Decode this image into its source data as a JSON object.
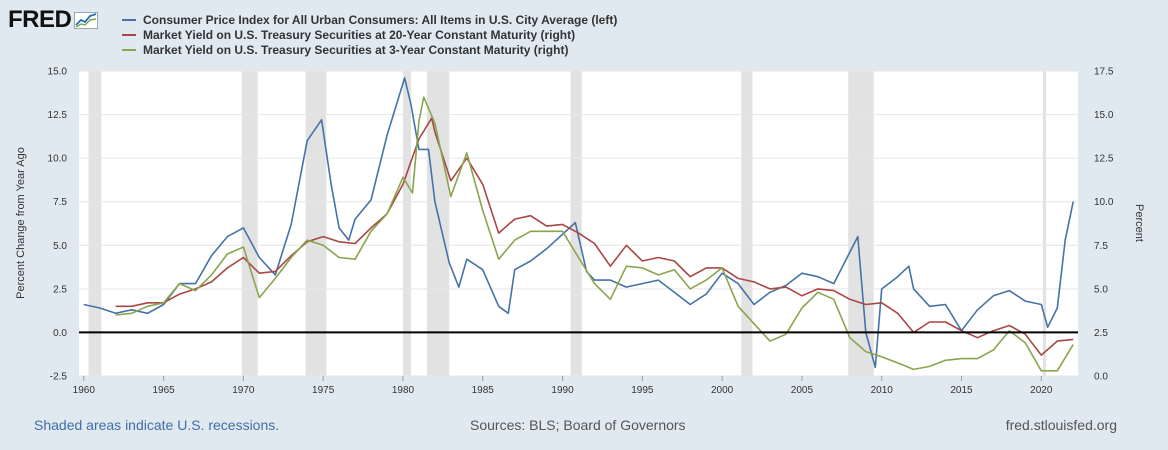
{
  "brand": {
    "logo_text": "FRED"
  },
  "chart_data": {
    "type": "line",
    "title": "",
    "xlabel": "",
    "ylabel_left": "Percent Change from Year Ago",
    "ylabel_right": "Percent",
    "xlim": [
      1959.7,
      2022.3
    ],
    "ylim_left": [
      -2.5,
      15
    ],
    "ylim_right": [
      0,
      17.5
    ],
    "x_ticks": [
      "1960",
      "1965",
      "1970",
      "1975",
      "1980",
      "1985",
      "1990",
      "1995",
      "2000",
      "2005",
      "2010",
      "2015",
      "2020"
    ],
    "y_ticks_left": [
      "15.0",
      "12.5",
      "10.0",
      "7.5",
      "5.0",
      "2.5",
      "0.0",
      "-2.5"
    ],
    "y_ticks_right": [
      "17.5",
      "15.0",
      "12.5",
      "10.0",
      "7.5",
      "5.0",
      "2.5",
      "0.0"
    ],
    "zero_line_left": 0,
    "recessions": [
      [
        1960.3,
        1961.1
      ],
      [
        1969.9,
        1970.9
      ],
      [
        1973.9,
        1975.2
      ],
      [
        1980.0,
        1980.5
      ],
      [
        1981.5,
        1982.9
      ],
      [
        1990.5,
        1991.2
      ],
      [
        2001.2,
        2001.9
      ],
      [
        2007.9,
        2009.5
      ],
      [
        2020.1,
        2020.3
      ]
    ],
    "series": [
      {
        "name": "Consumer Price Index for All Urban Consumers: All Items in U.S. City Average (left)",
        "axis": "left",
        "color": "#4572a7",
        "points": [
          [
            1960,
            1.6
          ],
          [
            1961,
            1.4
          ],
          [
            1962,
            1.1
          ],
          [
            1963,
            1.3
          ],
          [
            1964,
            1.1
          ],
          [
            1965,
            1.6
          ],
          [
            1966,
            2.8
          ],
          [
            1967,
            2.8
          ],
          [
            1968,
            4.4
          ],
          [
            1969,
            5.5
          ],
          [
            1970,
            6.0
          ],
          [
            1971,
            4.3
          ],
          [
            1972,
            3.3
          ],
          [
            1973,
            6.2
          ],
          [
            1974,
            11.0
          ],
          [
            1974.9,
            12.2
          ],
          [
            1975.5,
            8.5
          ],
          [
            1976,
            6.0
          ],
          [
            1976.6,
            5.3
          ],
          [
            1977,
            6.5
          ],
          [
            1978,
            7.6
          ],
          [
            1979,
            11.3
          ],
          [
            1980.1,
            14.6
          ],
          [
            1980.5,
            13.1
          ],
          [
            1981,
            10.5
          ],
          [
            1981.6,
            10.5
          ],
          [
            1982,
            7.5
          ],
          [
            1982.9,
            4.0
          ],
          [
            1983.5,
            2.6
          ],
          [
            1984,
            4.2
          ],
          [
            1985,
            3.6
          ],
          [
            1986,
            1.5
          ],
          [
            1986.6,
            1.1
          ],
          [
            1987,
            3.6
          ],
          [
            1988,
            4.1
          ],
          [
            1989,
            4.8
          ],
          [
            1990.8,
            6.3
          ],
          [
            1991.5,
            3.5
          ],
          [
            1992,
            3.0
          ],
          [
            1993,
            3.0
          ],
          [
            1994,
            2.6
          ],
          [
            1995,
            2.8
          ],
          [
            1996,
            3.0
          ],
          [
            1997,
            2.3
          ],
          [
            1998,
            1.6
          ],
          [
            1999,
            2.2
          ],
          [
            2000,
            3.4
          ],
          [
            2001,
            2.8
          ],
          [
            2002,
            1.6
          ],
          [
            2003,
            2.3
          ],
          [
            2004,
            2.7
          ],
          [
            2005,
            3.4
          ],
          [
            2006,
            3.2
          ],
          [
            2007,
            2.8
          ],
          [
            2008.5,
            5.5
          ],
          [
            2009,
            0.0
          ],
          [
            2009.6,
            -2.0
          ],
          [
            2010,
            2.5
          ],
          [
            2011,
            3.2
          ],
          [
            2011.7,
            3.8
          ],
          [
            2012,
            2.5
          ],
          [
            2013,
            1.5
          ],
          [
            2014,
            1.6
          ],
          [
            2015,
            0.1
          ],
          [
            2016,
            1.3
          ],
          [
            2017,
            2.1
          ],
          [
            2018,
            2.4
          ],
          [
            2019,
            1.8
          ],
          [
            2020,
            1.6
          ],
          [
            2020.4,
            0.3
          ],
          [
            2021,
            1.4
          ],
          [
            2021.5,
            5.3
          ],
          [
            2022,
            7.5
          ]
        ]
      },
      {
        "name": "Market Yield on U.S. Treasury Securities at 20-Year Constant Maturity (right)",
        "axis": "right",
        "color": "#aa4643",
        "points": [
          [
            1962,
            4.0
          ],
          [
            1963,
            4.0
          ],
          [
            1964,
            4.2
          ],
          [
            1965,
            4.2
          ],
          [
            1966,
            4.7
          ],
          [
            1967,
            5.0
          ],
          [
            1968,
            5.4
          ],
          [
            1969,
            6.2
          ],
          [
            1970,
            6.8
          ],
          [
            1971,
            5.9
          ],
          [
            1972,
            6.0
          ],
          [
            1973,
            6.9
          ],
          [
            1974,
            7.7
          ],
          [
            1975,
            8.0
          ],
          [
            1976,
            7.7
          ],
          [
            1977,
            7.6
          ],
          [
            1978,
            8.5
          ],
          [
            1979,
            9.3
          ],
          [
            1980,
            11.0
          ],
          [
            1981,
            13.6
          ],
          [
            1981.8,
            14.8
          ],
          [
            1982,
            14.0
          ],
          [
            1983,
            11.2
          ],
          [
            1984,
            12.5
          ],
          [
            1985,
            11.0
          ],
          [
            1986,
            8.2
          ],
          [
            1987,
            9.0
          ],
          [
            1988,
            9.2
          ],
          [
            1989,
            8.6
          ],
          [
            1990,
            8.7
          ],
          [
            1991,
            8.2
          ],
          [
            1992,
            7.6
          ],
          [
            1993,
            6.3
          ],
          [
            1994,
            7.5
          ],
          [
            1995,
            6.6
          ],
          [
            1996,
            6.8
          ],
          [
            1997,
            6.6
          ],
          [
            1998,
            5.7
          ],
          [
            1999,
            6.2
          ],
          [
            2000,
            6.2
          ],
          [
            2001,
            5.6
          ],
          [
            2002,
            5.4
          ],
          [
            2003,
            5.0
          ],
          [
            2004,
            5.1
          ],
          [
            2005,
            4.6
          ],
          [
            2006,
            5.0
          ],
          [
            2007,
            4.9
          ],
          [
            2008,
            4.4
          ],
          [
            2009,
            4.1
          ],
          [
            2010,
            4.2
          ],
          [
            2011,
            3.6
          ],
          [
            2012,
            2.5
          ],
          [
            2013,
            3.1
          ],
          [
            2014,
            3.1
          ],
          [
            2015,
            2.6
          ],
          [
            2016,
            2.2
          ],
          [
            2017,
            2.6
          ],
          [
            2018,
            2.9
          ],
          [
            2019,
            2.4
          ],
          [
            2020,
            1.2
          ],
          [
            2021,
            2.0
          ],
          [
            2022,
            2.1
          ]
        ]
      },
      {
        "name": "Market Yield on U.S. Treasury Securities at 3-Year Constant Maturity (right)",
        "axis": "right",
        "color": "#89a54e",
        "points": [
          [
            1962,
            3.5
          ],
          [
            1963,
            3.6
          ],
          [
            1964,
            4.0
          ],
          [
            1965,
            4.2
          ],
          [
            1966,
            5.3
          ],
          [
            1967,
            4.9
          ],
          [
            1968,
            5.8
          ],
          [
            1969,
            7.0
          ],
          [
            1970,
            7.4
          ],
          [
            1971,
            4.5
          ],
          [
            1972,
            5.6
          ],
          [
            1973,
            6.8
          ],
          [
            1974,
            7.8
          ],
          [
            1975,
            7.5
          ],
          [
            1976,
            6.8
          ],
          [
            1977,
            6.7
          ],
          [
            1978,
            8.3
          ],
          [
            1979,
            9.3
          ],
          [
            1980,
            11.4
          ],
          [
            1980.6,
            10.5
          ],
          [
            1981,
            14.6
          ],
          [
            1981.3,
            16.0
          ],
          [
            1982,
            14.5
          ],
          [
            1983,
            10.3
          ],
          [
            1984,
            12.8
          ],
          [
            1985,
            9.5
          ],
          [
            1986,
            6.7
          ],
          [
            1987,
            7.8
          ],
          [
            1988,
            8.3
          ],
          [
            1989,
            8.3
          ],
          [
            1990,
            8.3
          ],
          [
            1991,
            6.8
          ],
          [
            1992,
            5.3
          ],
          [
            1993,
            4.4
          ],
          [
            1994,
            6.3
          ],
          [
            1995,
            6.2
          ],
          [
            1996,
            5.8
          ],
          [
            1997,
            6.1
          ],
          [
            1998,
            5.0
          ],
          [
            1999,
            5.5
          ],
          [
            2000,
            6.2
          ],
          [
            2001,
            4.0
          ],
          [
            2002,
            3.0
          ],
          [
            2003,
            2.0
          ],
          [
            2004,
            2.4
          ],
          [
            2005,
            3.9
          ],
          [
            2006,
            4.8
          ],
          [
            2007,
            4.4
          ],
          [
            2008,
            2.2
          ],
          [
            2009,
            1.4
          ],
          [
            2010,
            1.1
          ],
          [
            2011,
            0.75
          ],
          [
            2012,
            0.38
          ],
          [
            2013,
            0.55
          ],
          [
            2014,
            0.9
          ],
          [
            2015,
            1.0
          ],
          [
            2016,
            1.0
          ],
          [
            2017,
            1.5
          ],
          [
            2018,
            2.6
          ],
          [
            2019,
            1.9
          ],
          [
            2020,
            0.3
          ],
          [
            2021,
            0.3
          ],
          [
            2022,
            1.8
          ]
        ]
      }
    ]
  },
  "footer": {
    "recession_note": "Shaded areas indicate U.S. recessions.",
    "sources": "Sources: BLS; Board of Governors",
    "url": "fred.stlouisfed.org"
  }
}
